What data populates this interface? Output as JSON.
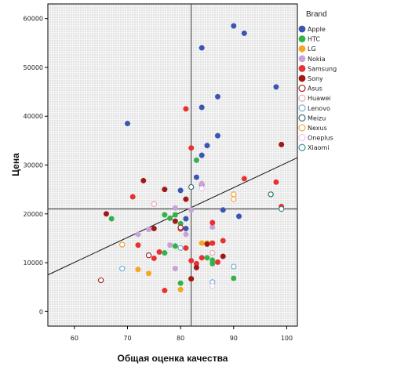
{
  "chart_data": {
    "type": "scatter",
    "xlabel": "Общая оценка качества",
    "ylabel": "Цена",
    "xlim": [
      55,
      102
    ],
    "ylim": [
      -3000,
      63000
    ],
    "x_ticks": [
      "60",
      "70",
      "80",
      "90",
      "100"
    ],
    "x_tick_values": [
      60,
      70,
      80,
      90,
      100
    ],
    "y_ticks": [
      "0",
      "10000",
      "20000",
      "30000",
      "40000",
      "50000",
      "60000"
    ],
    "y_tick_values": [
      0,
      10000,
      20000,
      30000,
      40000,
      50000,
      60000
    ],
    "reference_lines": {
      "x": 82,
      "y": 21000
    },
    "fit_line": {
      "x1": 55,
      "y1": 7500,
      "x2": 102,
      "y2": 31500
    },
    "grid": false,
    "legend_title": "Brand",
    "legend_position": "right",
    "series": [
      {
        "name": "Apple",
        "color": "#3b55b4",
        "filled": true,
        "points": [
          [
            70,
            38500
          ],
          [
            84,
            54000
          ],
          [
            90,
            58500
          ],
          [
            92,
            57000
          ],
          [
            98,
            46000
          ],
          [
            87,
            44000
          ],
          [
            84,
            41800
          ],
          [
            87,
            36000
          ],
          [
            85,
            34000
          ],
          [
            84,
            32000
          ],
          [
            83,
            27500
          ],
          [
            84,
            26000
          ],
          [
            80,
            24800
          ],
          [
            88,
            20800
          ],
          [
            91,
            19500
          ],
          [
            81,
            19000
          ],
          [
            81,
            17000
          ]
        ]
      },
      {
        "name": "HTC",
        "color": "#34b24a",
        "filled": true,
        "points": [
          [
            77,
            19800
          ],
          [
            78,
            19100
          ],
          [
            79,
            19800
          ],
          [
            80,
            18000
          ],
          [
            67,
            19000
          ],
          [
            77,
            12000
          ],
          [
            83,
            31000
          ],
          [
            85,
            11000
          ],
          [
            86,
            10500
          ],
          [
            86,
            9800
          ],
          [
            90,
            6800
          ],
          [
            82,
            6700
          ],
          [
            80,
            5800
          ],
          [
            79,
            13400
          ]
        ]
      },
      {
        "name": "LG",
        "color": "#f5a623",
        "filled": true,
        "points": [
          [
            85,
            14000
          ],
          [
            86,
            14000
          ],
          [
            84,
            14000
          ],
          [
            72,
            8600
          ],
          [
            74,
            7800
          ],
          [
            80,
            4500
          ]
        ]
      },
      {
        "name": "Nokia",
        "color": "#c9a3d8",
        "filled": true,
        "points": [
          [
            72,
            15800
          ],
          [
            74,
            16800
          ],
          [
            78,
            13600
          ],
          [
            79,
            21200
          ],
          [
            81,
            15800
          ],
          [
            86,
            17300
          ],
          [
            79,
            8800
          ],
          [
            84,
            26200
          ],
          [
            82,
            20800
          ]
        ]
      },
      {
        "name": "Samsung",
        "color": "#e83232",
        "filled": true,
        "points": [
          [
            72,
            13600
          ],
          [
            75,
            10900
          ],
          [
            76,
            12200
          ],
          [
            77,
            4300
          ],
          [
            80,
            16900
          ],
          [
            81,
            13000
          ],
          [
            81,
            41500
          ],
          [
            82,
            33500
          ],
          [
            82,
            10400
          ],
          [
            83,
            9800
          ],
          [
            86,
            18200
          ],
          [
            86,
            14000
          ],
          [
            87,
            10100
          ],
          [
            88,
            14500
          ],
          [
            92,
            27200
          ],
          [
            98,
            26500
          ],
          [
            99,
            21500
          ],
          [
            71,
            23500
          ],
          [
            84,
            11000
          ]
        ]
      },
      {
        "name": "Sony",
        "color": "#a01818",
        "filled": true,
        "points": [
          [
            66,
            20000
          ],
          [
            73,
            26800
          ],
          [
            77,
            25000
          ],
          [
            79,
            18500
          ],
          [
            81,
            23000
          ],
          [
            82,
            6700
          ],
          [
            85,
            13800
          ],
          [
            88,
            11300
          ],
          [
            99,
            34200
          ],
          [
            75,
            17000
          ],
          [
            83,
            9000
          ]
        ]
      },
      {
        "name": "Asus",
        "color": "#a01818",
        "filled": false,
        "points": [
          [
            65,
            6400
          ],
          [
            74,
            11500
          ],
          [
            80,
            17200
          ]
        ]
      },
      {
        "name": "Huawei",
        "color": "#e8a0b4",
        "filled": false,
        "points": [
          [
            75,
            22000
          ],
          [
            86,
            12000
          ]
        ]
      },
      {
        "name": "Lenovo",
        "color": "#6aa8d6",
        "filled": false,
        "points": [
          [
            69,
            8800
          ],
          [
            80,
            13000
          ],
          [
            86,
            6000
          ],
          [
            90,
            9200
          ]
        ]
      },
      {
        "name": "Meizu",
        "color": "#2a6a6a",
        "filled": false,
        "points": [
          [
            82,
            25500
          ],
          [
            97,
            24000
          ]
        ]
      },
      {
        "name": "Nexus",
        "color": "#f0a030",
        "filled": false,
        "points": [
          [
            69,
            13700
          ],
          [
            90,
            24000
          ],
          [
            90,
            23000
          ]
        ]
      },
      {
        "name": "Oneplus",
        "color": "#e8c8ee",
        "filled": false,
        "points": [
          [
            84,
            25200
          ],
          [
            86,
            5200
          ]
        ]
      },
      {
        "name": "Xiaomi",
        "color": "#2a8a8a",
        "filled": false,
        "points": [
          [
            99,
            21000
          ]
        ]
      }
    ]
  }
}
